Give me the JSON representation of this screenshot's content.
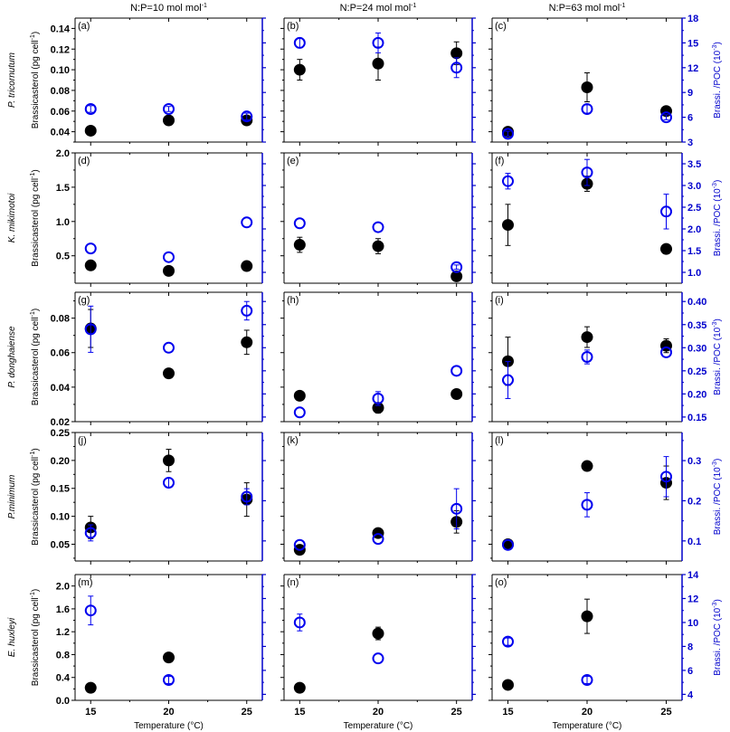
{
  "chart_data": {
    "type": "scatter",
    "column_titles": [
      {
        "text": "N:P=10 mol mol",
        "sup": "-1"
      },
      {
        "text": "N:P=24 mol mol",
        "sup": "-1"
      },
      {
        "text": "N:P=63 mol mol",
        "sup": "-1"
      }
    ],
    "xlabel": "Temperature (°C)",
    "x_ticks": [
      "15",
      "20",
      "25"
    ],
    "x_tick_values": [
      15,
      20,
      25
    ],
    "xlim": [
      14,
      26
    ],
    "left_ylabel": {
      "text": "Brassicasterol (pg cell",
      "sup": "-1",
      "close": ")"
    },
    "right_ylabel": {
      "text": "Brassi. /POC (10",
      "sup": "-3",
      "close": ")"
    },
    "colors": {
      "cell": "#000000",
      "poc": "#0000ee",
      "axis_right": "#0000cc"
    },
    "series_names": [
      "Brassicasterol per cell (filled)",
      "Brassi./POC (open)"
    ],
    "rows": [
      {
        "species": "P. tricornutum",
        "left_ticks": [
          "0.04",
          "0.06",
          "0.08",
          "0.10",
          "0.12",
          "0.14"
        ],
        "left_tick_values": [
          0.04,
          0.06,
          0.08,
          0.1,
          0.12,
          0.14
        ],
        "left_ylim": [
          0.03,
          0.15
        ],
        "right_ticks": [
          "3",
          "6",
          "9",
          "12",
          "15",
          "18"
        ],
        "right_tick_values": [
          3,
          6,
          9,
          12,
          15,
          18
        ],
        "right_ylim": [
          3,
          18
        ],
        "panels": [
          {
            "label": "(a)",
            "cell": [
              [
                15,
                0.041,
                0
              ],
              [
                20,
                0.051,
                0
              ],
              [
                25,
                0.051,
                0.002
              ]
            ],
            "poc": [
              [
                15,
                7.0,
                0.4
              ],
              [
                20,
                7.0,
                0.3
              ],
              [
                25,
                6.1,
                0.4
              ]
            ]
          },
          {
            "label": "(b)",
            "cell": [
              [
                15,
                0.1,
                0.01
              ],
              [
                20,
                0.106,
                0.016
              ],
              [
                25,
                0.116,
                0.011
              ]
            ],
            "poc": [
              [
                15,
                15.0,
                0.6
              ],
              [
                20,
                15.0,
                1.2
              ],
              [
                25,
                12.0,
                1.2
              ]
            ]
          },
          {
            "label": "(c)",
            "cell": [
              [
                15,
                0.04,
                0.001
              ],
              [
                20,
                0.083,
                0.014
              ],
              [
                25,
                0.06,
                0.002
              ]
            ],
            "poc": [
              [
                15,
                4.0,
                0.3
              ],
              [
                20,
                7.0,
                0.5
              ],
              [
                25,
                6.0,
                0.3
              ]
            ]
          }
        ]
      },
      {
        "species": "K. mikimotoi",
        "left_ticks": [
          "0.5",
          "1.0",
          "1.5",
          "2.0"
        ],
        "left_tick_values": [
          0.5,
          1.0,
          1.5,
          2.0
        ],
        "left_ylim": [
          0.1,
          2.0
        ],
        "right_ticks": [
          "1.0",
          "1.5",
          "2.0",
          "2.5",
          "3.0",
          "3.5"
        ],
        "right_tick_values": [
          1.0,
          1.5,
          2.0,
          2.5,
          3.0,
          3.5
        ],
        "right_ylim": [
          0.75,
          3.75
        ],
        "panels": [
          {
            "label": "(d)",
            "cell": [
              [
                15,
                0.36,
                0
              ],
              [
                20,
                0.28,
                0
              ],
              [
                25,
                0.35,
                0
              ]
            ],
            "poc": [
              [
                15,
                1.55,
                0
              ],
              [
                20,
                1.35,
                0
              ],
              [
                25,
                2.15,
                0
              ]
            ]
          },
          {
            "label": "(e)",
            "cell": [
              [
                15,
                0.66,
                0.11
              ],
              [
                20,
                0.64,
                0.11
              ],
              [
                25,
                0.2,
                0.02
              ]
            ],
            "poc": [
              [
                15,
                2.13,
                0
              ],
              [
                20,
                2.04,
                0
              ],
              [
                25,
                1.12,
                0.05
              ]
            ]
          },
          {
            "label": "(f)",
            "cell": [
              [
                15,
                0.95,
                0.3
              ],
              [
                20,
                1.55,
                0.11
              ],
              [
                25,
                0.6,
                0.05
              ]
            ],
            "poc": [
              [
                15,
                3.1,
                0.18
              ],
              [
                20,
                3.3,
                0.3
              ],
              [
                25,
                2.4,
                0.4
              ]
            ]
          }
        ]
      },
      {
        "species": "P. donghaiense",
        "left_ticks": [
          "0.02",
          "0.04",
          "0.06",
          "0.08"
        ],
        "left_tick_values": [
          0.02,
          0.04,
          0.06,
          0.08
        ],
        "left_ylim": [
          0.02,
          0.095
        ],
        "right_ticks": [
          "0.15",
          "0.20",
          "0.25",
          "0.30",
          "0.35",
          "0.40"
        ],
        "right_tick_values": [
          0.15,
          0.2,
          0.25,
          0.3,
          0.35,
          0.4
        ],
        "right_ylim": [
          0.14,
          0.42
        ],
        "panels": [
          {
            "label": "(g)",
            "cell": [
              [
                15,
                0.074,
                0.011
              ],
              [
                20,
                0.048,
                0
              ],
              [
                25,
                0.066,
                0.007
              ]
            ],
            "poc": [
              [
                15,
                0.34,
                0.05
              ],
              [
                20,
                0.3,
                0
              ],
              [
                25,
                0.38,
                0.02
              ]
            ]
          },
          {
            "label": "(h)",
            "cell": [
              [
                15,
                0.035,
                0
              ],
              [
                20,
                0.028,
                0.003
              ],
              [
                25,
                0.036,
                0
              ]
            ],
            "poc": [
              [
                15,
                0.16,
                0
              ],
              [
                20,
                0.19,
                0.015
              ],
              [
                25,
                0.25,
                0
              ]
            ]
          },
          {
            "label": "(i)",
            "cell": [
              [
                15,
                0.055,
                0.014
              ],
              [
                20,
                0.069,
                0.006
              ],
              [
                25,
                0.064,
                0.004
              ]
            ],
            "poc": [
              [
                15,
                0.23,
                0.04
              ],
              [
                20,
                0.28,
                0.015
              ],
              [
                25,
                0.29,
                0
              ]
            ]
          }
        ]
      },
      {
        "species": "P.minimum",
        "left_ticks": [
          "0.05",
          "0.10",
          "0.15",
          "0.20",
          "0.25"
        ],
        "left_tick_values": [
          0.05,
          0.1,
          0.15,
          0.2,
          0.25
        ],
        "left_ylim": [
          0.02,
          0.25
        ],
        "right_ticks": [
          "0.1",
          "0.2",
          "0.3"
        ],
        "right_tick_values": [
          0.1,
          0.2,
          0.3
        ],
        "right_ylim": [
          0.05,
          0.37
        ],
        "panels": [
          {
            "label": "(j)",
            "cell": [
              [
                15,
                0.08,
                0.02
              ],
              [
                20,
                0.2,
                0.02
              ],
              [
                25,
                0.13,
                0.03
              ]
            ],
            "poc": [
              [
                15,
                0.12,
                0.02
              ],
              [
                20,
                0.245,
                0.012
              ],
              [
                25,
                0.21,
                0.02
              ]
            ]
          },
          {
            "label": "(k)",
            "cell": [
              [
                15,
                0.04,
                0
              ],
              [
                20,
                0.07,
                0
              ],
              [
                25,
                0.09,
                0.02
              ]
            ],
            "poc": [
              [
                15,
                0.09,
                0
              ],
              [
                20,
                0.105,
                0
              ],
              [
                25,
                0.18,
                0.05
              ]
            ]
          },
          {
            "label": "(l)",
            "cell": [
              [
                15,
                0.05,
                0
              ],
              [
                20,
                0.19,
                0
              ],
              [
                25,
                0.16,
                0.03
              ]
            ],
            "poc": [
              [
                15,
                0.09,
                0
              ],
              [
                20,
                0.19,
                0.03
              ],
              [
                25,
                0.26,
                0.05
              ]
            ]
          }
        ]
      },
      {
        "species": "E. huxleyi",
        "left_ticks": [
          "0.0",
          "0.4",
          "0.8",
          "1.2",
          "1.6",
          "2.0"
        ],
        "left_tick_values": [
          0.0,
          0.4,
          0.8,
          1.2,
          1.6,
          2.0
        ],
        "left_ylim": [
          0.0,
          2.2
        ],
        "right_ticks": [
          "4",
          "6",
          "8",
          "10",
          "12",
          "14"
        ],
        "right_tick_values": [
          4,
          6,
          8,
          10,
          12,
          14
        ],
        "right_ylim": [
          3.5,
          14
        ],
        "panels": [
          {
            "label": "(m)",
            "cell": [
              [
                15,
                0.22,
                0
              ],
              [
                20,
                0.75,
                0
              ]
            ],
            "poc": [
              [
                15,
                11.0,
                1.2
              ],
              [
                20,
                5.2,
                0.3
              ]
            ]
          },
          {
            "label": "(n)",
            "cell": [
              [
                15,
                0.22,
                0
              ],
              [
                20,
                1.17,
                0.11
              ]
            ],
            "poc": [
              [
                15,
                10.0,
                0.7
              ],
              [
                20,
                7.0,
                0
              ]
            ]
          },
          {
            "label": "(o)",
            "cell": [
              [
                15,
                0.27,
                0
              ],
              [
                20,
                1.47,
                0.3
              ]
            ],
            "poc": [
              [
                15,
                8.4,
                0.3
              ],
              [
                20,
                5.2,
                0.3
              ]
            ]
          }
        ]
      }
    ]
  }
}
